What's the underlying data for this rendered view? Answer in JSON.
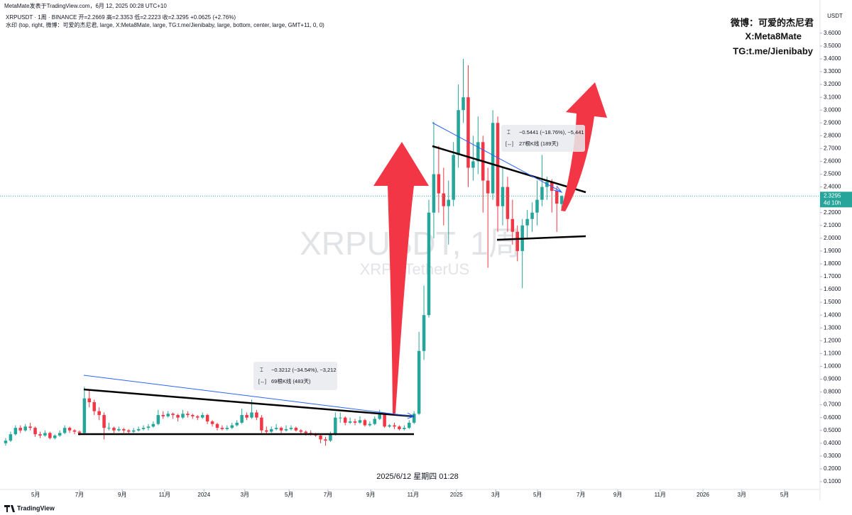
{
  "header": {
    "publish": "MetaMate发表于TradingView.com，6月 12, 2025 00:28 UTC+10",
    "symbol_line": "XRPUSDT · 1周 · BINANCE  开=2.2669  高=2.3353  低=2.2223  收=2.3295  +0.0625 (+2.76%)",
    "watermark_line": "水印 (top, right, 微博：可爱的杰尼君, large, X:Meta8Mate, large, TG:t.me/Jienibaby, large, bottom, center, large, GMT+11, 0, 0)"
  },
  "watermark": {
    "lines": [
      "微博：可爱的杰尼君",
      "X:Meta8Mate",
      "TG:t.me/Jienibaby"
    ],
    "symbol": "XRPUSDT, 1周",
    "description": "XRP / TetherUS"
  },
  "measures": [
    {
      "line1": "−0.3212 (−34.54%), −3,212",
      "line2": "69根K线 (483天)"
    },
    {
      "line1": "−0.5441 (−18.76%), −5,441",
      "line2": "27根K线 (189天)"
    }
  ],
  "cursor_time": "2025/6/12 星期四 01:28",
  "footer": "TradingView",
  "chart_data": {
    "type": "candlestick",
    "axis_unit": "USDT",
    "up_color": "#26a69a",
    "down_color": "#f23645",
    "grid": false,
    "last_price": 2.3295,
    "countdown": "4d 10h",
    "ylim": [
      0.039,
      3.804
    ],
    "yticks": [
      {
        "value": 0.1,
        "label": "0.1000"
      },
      {
        "value": 0.2,
        "label": "0.2000"
      },
      {
        "value": 0.3,
        "label": "0.3000"
      },
      {
        "value": 0.4,
        "label": "0.4000"
      },
      {
        "value": 0.5,
        "label": "0.5000"
      },
      {
        "value": 0.6,
        "label": "0.6000"
      },
      {
        "value": 0.7,
        "label": "0.7000"
      },
      {
        "value": 0.8,
        "label": "0.8000"
      },
      {
        "value": 0.9,
        "label": "0.9000"
      },
      {
        "value": 1.0,
        "label": "1.0000"
      },
      {
        "value": 1.1,
        "label": "1.1000"
      },
      {
        "value": 1.2,
        "label": "1.2000"
      },
      {
        "value": 1.3,
        "label": "1.3000"
      },
      {
        "value": 1.4,
        "label": "1.4000"
      },
      {
        "value": 1.5,
        "label": "1.5000"
      },
      {
        "value": 1.6,
        "label": "1.6000"
      },
      {
        "value": 1.7,
        "label": "1.7000"
      },
      {
        "value": 1.8,
        "label": "1.8000"
      },
      {
        "value": 1.9,
        "label": "1.9000"
      },
      {
        "value": 2.0,
        "label": "2.0000"
      },
      {
        "value": 2.1,
        "label": "2.1000"
      },
      {
        "value": 2.2,
        "label": "2.2000"
      },
      {
        "value": 2.3,
        "label": "2.3000"
      },
      {
        "value": 2.4,
        "label": "2.4000"
      },
      {
        "value": 2.5,
        "label": "2.5000"
      },
      {
        "value": 2.6,
        "label": "2.6000"
      },
      {
        "value": 2.7,
        "label": "2.7000"
      },
      {
        "value": 2.8,
        "label": "2.8000"
      },
      {
        "value": 2.9,
        "label": "2.9000"
      },
      {
        "value": 3.0,
        "label": "3.0000"
      },
      {
        "value": 3.1,
        "label": "3.1000"
      },
      {
        "value": 3.2,
        "label": "3.2000"
      },
      {
        "value": 3.3,
        "label": "3.3000"
      },
      {
        "value": 3.4,
        "label": "3.4000"
      },
      {
        "value": 3.5,
        "label": "3.5000"
      },
      {
        "value": 3.6,
        "label": "3.6000"
      }
    ],
    "xlim": [
      -1.15,
      165.5
    ],
    "xticks": [
      {
        "value": 6.1,
        "label": "5月"
      },
      {
        "value": 15.0,
        "label": "7月"
      },
      {
        "value": 23.7,
        "label": "9月"
      },
      {
        "value": 32.3,
        "label": "11月"
      },
      {
        "value": 40.3,
        "label": "2024"
      },
      {
        "value": 48.6,
        "label": "3月"
      },
      {
        "value": 57.6,
        "label": "5月"
      },
      {
        "value": 65.5,
        "label": "7月"
      },
      {
        "value": 74.2,
        "label": "9月"
      },
      {
        "value": 82.8,
        "label": "11月"
      },
      {
        "value": 91.6,
        "label": "2025"
      },
      {
        "value": 99.6,
        "label": "3月"
      },
      {
        "value": 108.1,
        "label": "5月"
      },
      {
        "value": 116.9,
        "label": "7月"
      },
      {
        "value": 124.4,
        "label": "9月"
      },
      {
        "value": 133.0,
        "label": "11月"
      },
      {
        "value": 141.7,
        "label": "2026"
      },
      {
        "value": 149.6,
        "label": "3月"
      },
      {
        "value": 158.3,
        "label": "5月"
      }
    ],
    "ohlc": [
      [
        0.4,
        0.44,
        0.38,
        0.42
      ],
      [
        0.42,
        0.49,
        0.41,
        0.47
      ],
      [
        0.47,
        0.54,
        0.46,
        0.52
      ],
      [
        0.52,
        0.54,
        0.48,
        0.5
      ],
      [
        0.5,
        0.55,
        0.49,
        0.53
      ],
      [
        0.53,
        0.56,
        0.5,
        0.52
      ],
      [
        0.52,
        0.53,
        0.45,
        0.47
      ],
      [
        0.47,
        0.49,
        0.44,
        0.46
      ],
      [
        0.46,
        0.5,
        0.45,
        0.48
      ],
      [
        0.48,
        0.49,
        0.43,
        0.44
      ],
      [
        0.44,
        0.47,
        0.43,
        0.46
      ],
      [
        0.46,
        0.5,
        0.45,
        0.48
      ],
      [
        0.48,
        0.54,
        0.47,
        0.52
      ],
      [
        0.52,
        0.53,
        0.48,
        0.5
      ],
      [
        0.5,
        0.51,
        0.47,
        0.49
      ],
      [
        0.49,
        0.5,
        0.46,
        0.48
      ],
      [
        0.48,
        0.84,
        0.47,
        0.75
      ],
      [
        0.75,
        0.82,
        0.68,
        0.72
      ],
      [
        0.72,
        0.74,
        0.62,
        0.65
      ],
      [
        0.65,
        0.68,
        0.58,
        0.62
      ],
      [
        0.62,
        0.64,
        0.43,
        0.52
      ],
      [
        0.52,
        0.56,
        0.5,
        0.52
      ],
      [
        0.52,
        0.53,
        0.48,
        0.5
      ],
      [
        0.5,
        0.53,
        0.49,
        0.51
      ],
      [
        0.51,
        0.52,
        0.48,
        0.5
      ],
      [
        0.5,
        0.51,
        0.47,
        0.49
      ],
      [
        0.49,
        0.52,
        0.48,
        0.5
      ],
      [
        0.5,
        0.53,
        0.49,
        0.51
      ],
      [
        0.51,
        0.54,
        0.5,
        0.52
      ],
      [
        0.52,
        0.55,
        0.5,
        0.53
      ],
      [
        0.53,
        0.57,
        0.52,
        0.55
      ],
      [
        0.55,
        0.66,
        0.54,
        0.62
      ],
      [
        0.62,
        0.65,
        0.59,
        0.61
      ],
      [
        0.61,
        0.65,
        0.6,
        0.63
      ],
      [
        0.63,
        0.64,
        0.59,
        0.62
      ],
      [
        0.62,
        0.63,
        0.57,
        0.6
      ],
      [
        0.6,
        0.66,
        0.59,
        0.63
      ],
      [
        0.63,
        0.65,
        0.6,
        0.62
      ],
      [
        0.62,
        0.63,
        0.59,
        0.61
      ],
      [
        0.61,
        0.62,
        0.58,
        0.6
      ],
      [
        0.6,
        0.64,
        0.59,
        0.62
      ],
      [
        0.62,
        0.63,
        0.55,
        0.57
      ],
      [
        0.57,
        0.58,
        0.53,
        0.55
      ],
      [
        0.55,
        0.56,
        0.5,
        0.52
      ],
      [
        0.52,
        0.54,
        0.5,
        0.51
      ],
      [
        0.51,
        0.54,
        0.5,
        0.52
      ],
      [
        0.52,
        0.56,
        0.51,
        0.54
      ],
      [
        0.54,
        0.58,
        0.53,
        0.56
      ],
      [
        0.56,
        0.67,
        0.55,
        0.62
      ],
      [
        0.62,
        0.64,
        0.58,
        0.6
      ],
      [
        0.6,
        0.74,
        0.59,
        0.64
      ],
      [
        0.64,
        0.66,
        0.58,
        0.6
      ],
      [
        0.6,
        0.62,
        0.48,
        0.5
      ],
      [
        0.5,
        0.53,
        0.47,
        0.49
      ],
      [
        0.49,
        0.53,
        0.48,
        0.51
      ],
      [
        0.51,
        0.55,
        0.5,
        0.52
      ],
      [
        0.52,
        0.53,
        0.48,
        0.5
      ],
      [
        0.5,
        0.54,
        0.49,
        0.51
      ],
      [
        0.51,
        0.54,
        0.5,
        0.52
      ],
      [
        0.52,
        0.53,
        0.49,
        0.5
      ],
      [
        0.5,
        0.51,
        0.47,
        0.49
      ],
      [
        0.49,
        0.5,
        0.46,
        0.48
      ],
      [
        0.48,
        0.5,
        0.46,
        0.47
      ],
      [
        0.47,
        0.48,
        0.45,
        0.46
      ],
      [
        0.46,
        0.47,
        0.4,
        0.43
      ],
      [
        0.43,
        0.45,
        0.38,
        0.42
      ],
      [
        0.42,
        0.49,
        0.41,
        0.47
      ],
      [
        0.47,
        0.64,
        0.46,
        0.6
      ],
      [
        0.6,
        0.64,
        0.56,
        0.6
      ],
      [
        0.6,
        0.61,
        0.54,
        0.56
      ],
      [
        0.56,
        0.6,
        0.55,
        0.57
      ],
      [
        0.57,
        0.59,
        0.54,
        0.56
      ],
      [
        0.56,
        0.61,
        0.55,
        0.58
      ],
      [
        0.58,
        0.59,
        0.53,
        0.54
      ],
      [
        0.54,
        0.57,
        0.53,
        0.55
      ],
      [
        0.55,
        0.61,
        0.54,
        0.59
      ],
      [
        0.59,
        0.66,
        0.58,
        0.63
      ],
      [
        0.63,
        0.64,
        0.52,
        0.53
      ],
      [
        0.53,
        0.55,
        0.52,
        0.54
      ],
      [
        0.54,
        0.56,
        0.51,
        0.53
      ],
      [
        0.53,
        0.54,
        0.5,
        0.51
      ],
      [
        0.51,
        0.54,
        0.5,
        0.52
      ],
      [
        0.52,
        0.58,
        0.51,
        0.56
      ],
      [
        0.56,
        0.65,
        0.55,
        0.63
      ],
      [
        0.63,
        1.27,
        0.62,
        1.12
      ],
      [
        1.12,
        1.63,
        1.05,
        1.4
      ],
      [
        1.4,
        2.3,
        1.38,
        2.2
      ],
      [
        2.2,
        2.91,
        2.0,
        2.5
      ],
      [
        2.5,
        2.72,
        2.2,
        2.35
      ],
      [
        2.35,
        2.55,
        2.1,
        2.25
      ],
      [
        2.25,
        2.45,
        1.95,
        2.3
      ],
      [
        2.3,
        2.75,
        2.25,
        2.65
      ],
      [
        2.65,
        3.2,
        2.55,
        3.0
      ],
      [
        3.0,
        3.4,
        2.9,
        3.1
      ],
      [
        3.1,
        3.35,
        2.4,
        2.55
      ],
      [
        2.55,
        2.8,
        2.45,
        2.6
      ],
      [
        2.6,
        2.95,
        2.5,
        2.75
      ],
      [
        2.75,
        2.8,
        2.2,
        2.45
      ],
      [
        2.45,
        2.55,
        1.77,
        2.35
      ],
      [
        2.35,
        3.0,
        2.3,
        2.9
      ],
      [
        2.9,
        2.95,
        2.05,
        2.25
      ],
      [
        2.25,
        2.55,
        2.1,
        2.4
      ],
      [
        2.4,
        2.48,
        2.05,
        2.15
      ],
      [
        2.15,
        2.3,
        1.95,
        2.05
      ],
      [
        2.05,
        2.1,
        1.82,
        1.9
      ],
      [
        1.9,
        2.15,
        1.61,
        2.1
      ],
      [
        2.1,
        2.22,
        2.0,
        2.15
      ],
      [
        2.15,
        2.28,
        2.05,
        2.2
      ],
      [
        2.2,
        2.45,
        2.1,
        2.3
      ],
      [
        2.3,
        2.65,
        2.25,
        2.4
      ],
      [
        2.4,
        2.48,
        2.3,
        2.44
      ],
      [
        2.44,
        2.46,
        2.2,
        2.37
      ],
      [
        2.37,
        2.4,
        2.05,
        2.27
      ],
      [
        2.2669,
        2.3353,
        2.2223,
        2.3295
      ]
    ]
  }
}
